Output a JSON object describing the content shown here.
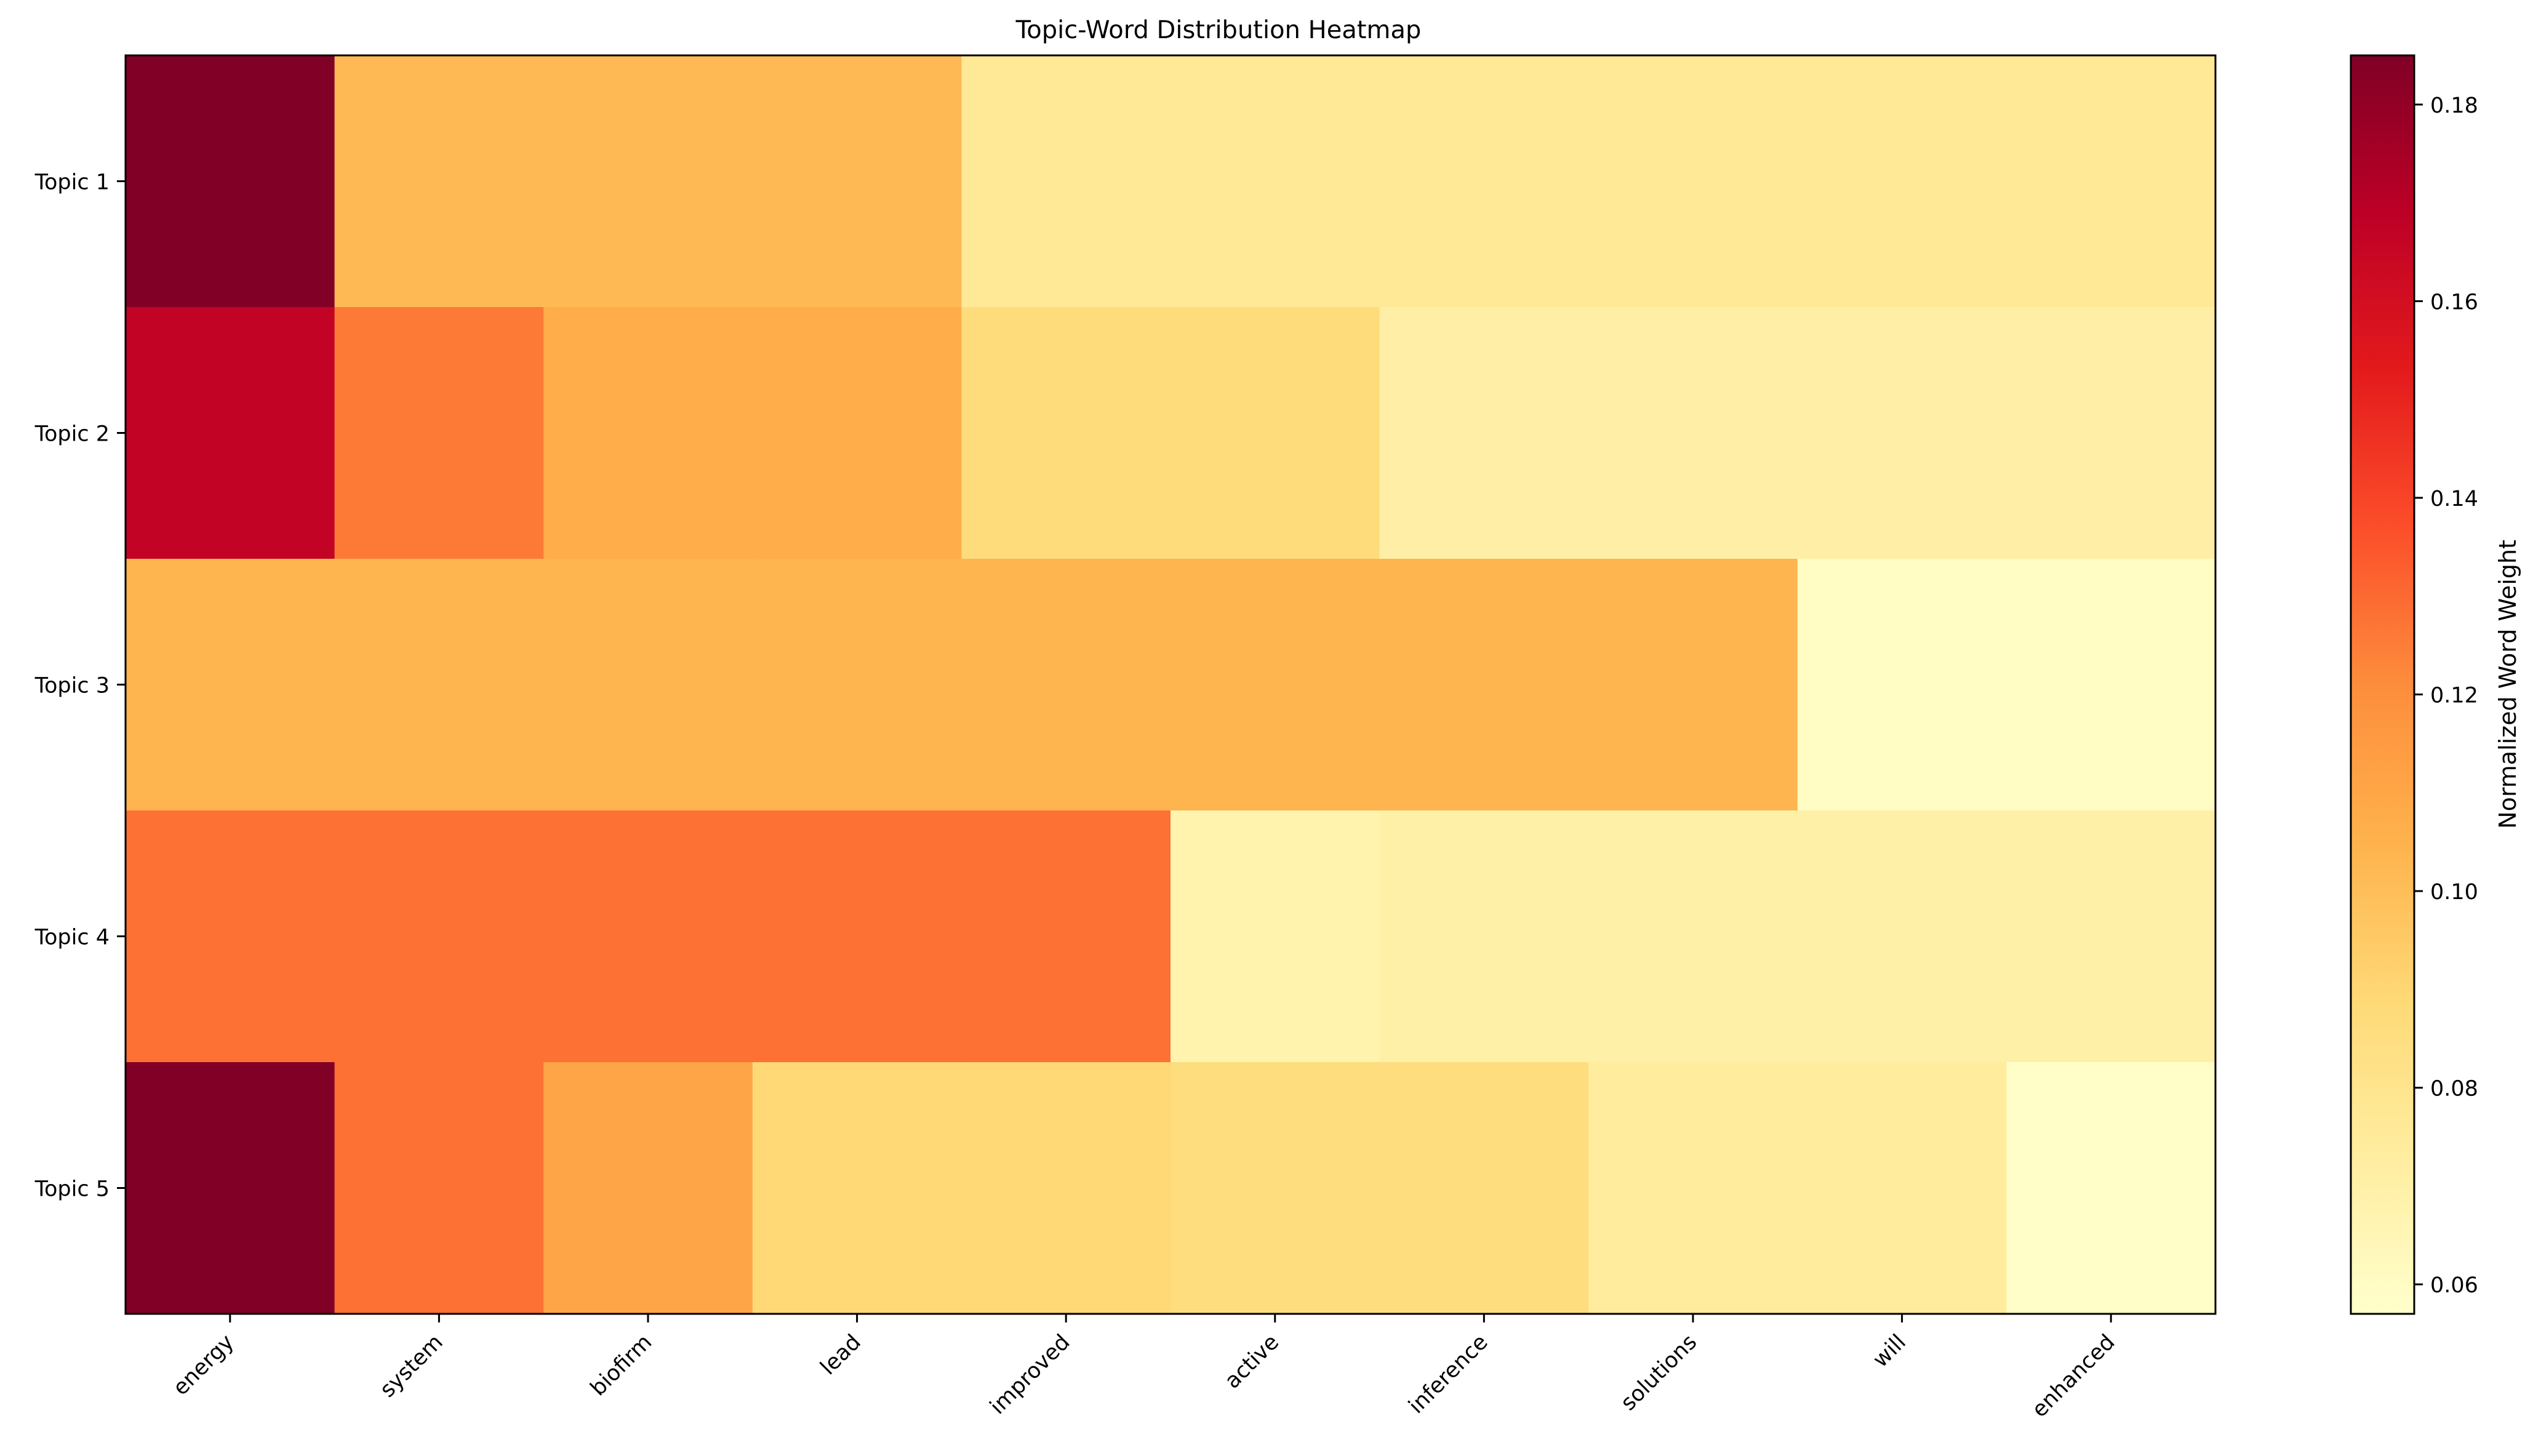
{
  "chart_data": {
    "type": "heatmap",
    "title": "Topic-Word Distribution Heatmap",
    "xlabel": "",
    "ylabel": "",
    "x_categories": [
      "energy",
      "system",
      "biofirm",
      "lead",
      "improved",
      "active",
      "inference",
      "solutions",
      "will",
      "enhanced"
    ],
    "y_categories": [
      "Topic 1",
      "Topic 2",
      "Topic 3",
      "Topic 4",
      "Topic 5"
    ],
    "values": [
      [
        0.185,
        0.102,
        0.102,
        0.102,
        0.077,
        0.077,
        0.077,
        0.077,
        0.077,
        0.077
      ],
      [
        0.167,
        0.126,
        0.107,
        0.107,
        0.087,
        0.087,
        0.071,
        0.071,
        0.071,
        0.071
      ],
      [
        0.104,
        0.104,
        0.104,
        0.104,
        0.104,
        0.104,
        0.104,
        0.104,
        0.06,
        0.06
      ],
      [
        0.128,
        0.128,
        0.128,
        0.128,
        0.128,
        0.068,
        0.07,
        0.07,
        0.07,
        0.07
      ],
      [
        0.185,
        0.128,
        0.11,
        0.089,
        0.089,
        0.086,
        0.086,
        0.074,
        0.074,
        0.058
      ]
    ],
    "colormap": [
      "#ffffcc",
      "#ffeda0",
      "#fed976",
      "#feb24c",
      "#fd8d3c",
      "#fc4e2a",
      "#e31a1c",
      "#bd0026",
      "#800026"
    ],
    "vmin": 0.057,
    "vmax": 0.185,
    "colorbar": {
      "label": "Normalized Word Weight",
      "ticks": [
        0.06,
        0.08,
        0.1,
        0.12,
        0.14,
        0.16,
        0.18
      ],
      "tick_labels": [
        "0.06",
        "0.08",
        "0.10",
        "0.12",
        "0.14",
        "0.16",
        "0.18"
      ]
    },
    "grid": false,
    "legend": "none"
  }
}
